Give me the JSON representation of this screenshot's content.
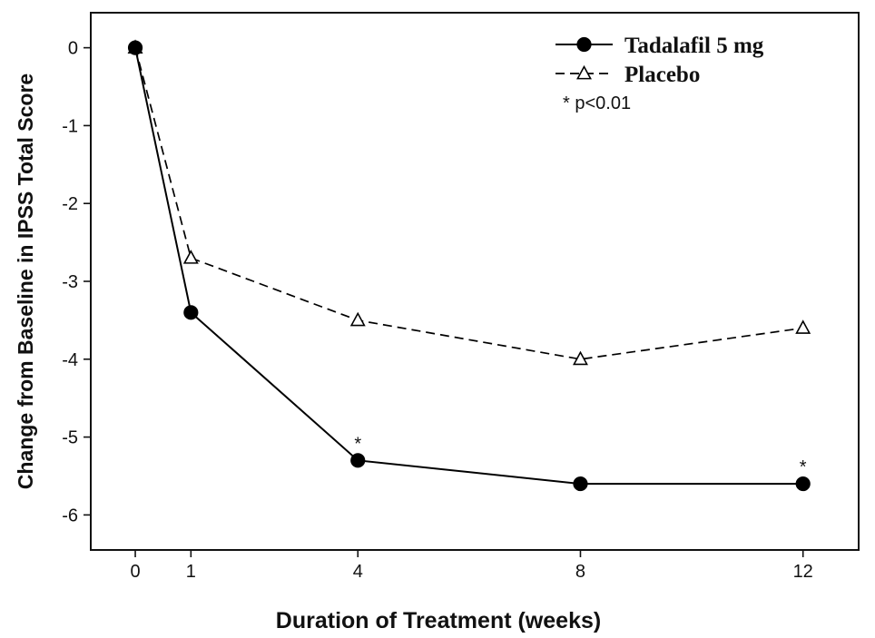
{
  "chart_data": {
    "type": "line",
    "title": "",
    "xlabel": "Duration of Treatment (weeks)",
    "ylabel": "Change from Baseline in IPSS Total Score",
    "x": [
      0,
      1,
      4,
      8,
      12
    ],
    "x_tick_labels": [
      "0",
      "1",
      "4",
      "8",
      "12"
    ],
    "y_ticks": [
      0,
      -1,
      -2,
      -3,
      -4,
      -5,
      -6
    ],
    "y_tick_labels": [
      "0",
      "-1",
      "-2",
      "-3",
      "-4",
      "-5",
      "-6"
    ],
    "xlim": [
      -0.8,
      13.0
    ],
    "ylim": [
      -6.45,
      0.45
    ],
    "grid": false,
    "legend_position": "top-right",
    "legend_note": "* p<0.01",
    "series": [
      {
        "name": "Tadalafil 5 mg",
        "values": [
          0,
          -3.4,
          -5.3,
          -5.6,
          -5.6
        ],
        "significance": [
          "",
          "",
          "*",
          "",
          "*"
        ],
        "marker": "filled-circle",
        "line_style": "solid",
        "color": "#000000"
      },
      {
        "name": "Placebo",
        "values": [
          0,
          -2.7,
          -3.5,
          -4.0,
          -3.6
        ],
        "significance": [
          "",
          "",
          "",
          "",
          ""
        ],
        "marker": "open-triangle",
        "line_style": "dashed",
        "color": "#000000"
      }
    ]
  }
}
